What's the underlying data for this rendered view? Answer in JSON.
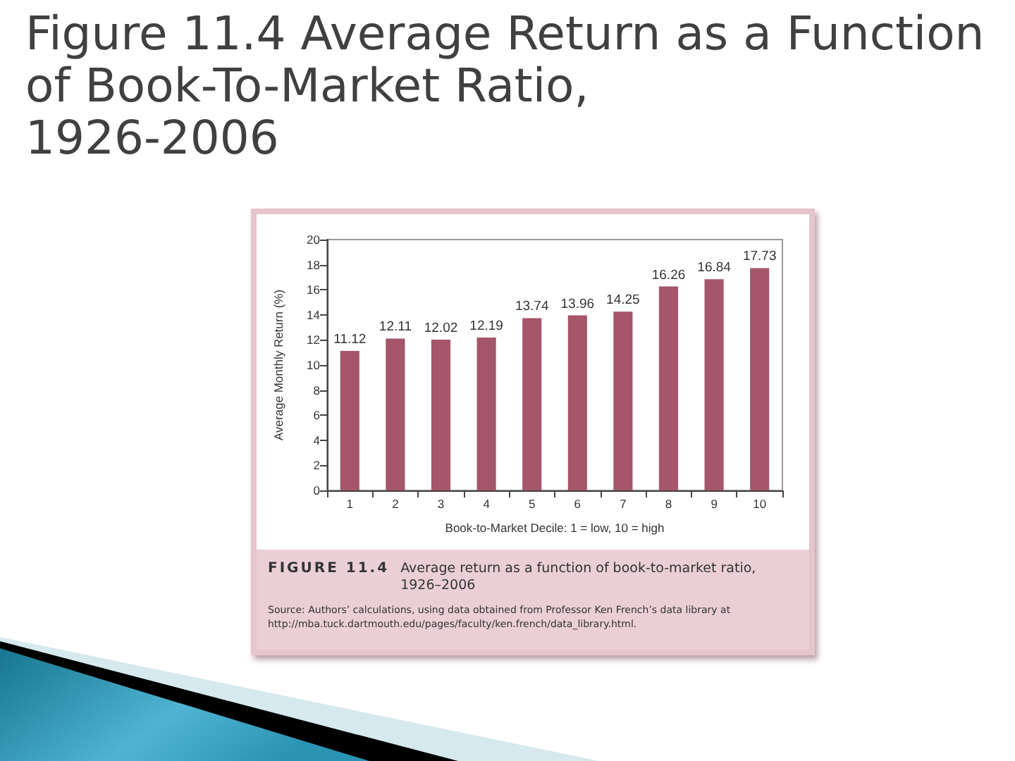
{
  "chart_data": {
    "type": "bar",
    "title": "Figure 11.4 Average Return as a Function\nof Book-To-Market Ratio,\n1926-2006",
    "xlabel": "Book-to-Market Decile: 1 = low, 10 = high",
    "ylabel": "Average Monthly Return (%)",
    "categories": [
      "1",
      "2",
      "3",
      "4",
      "5",
      "6",
      "7",
      "8",
      "9",
      "10"
    ],
    "values": [
      11.12,
      12.11,
      12.02,
      12.19,
      13.74,
      13.96,
      14.25,
      16.26,
      16.84,
      17.73
    ],
    "color": "#a5566a",
    "ylim": [
      0,
      20
    ],
    "yticks": [
      0,
      2,
      4,
      6,
      8,
      10,
      12,
      14,
      16,
      18,
      20
    ],
    "data_labels": true,
    "annotations": [
      "FIGURE 11.4",
      "Average return as a function of book-to-market ratio, 1926–2006",
      "Source: Authors’ calculations, using data obtained from Professor Ken French’s data library at http://mba.tuck.dartmouth.edu/pages/faculty/ken.french/data_library.html."
    ]
  }
}
